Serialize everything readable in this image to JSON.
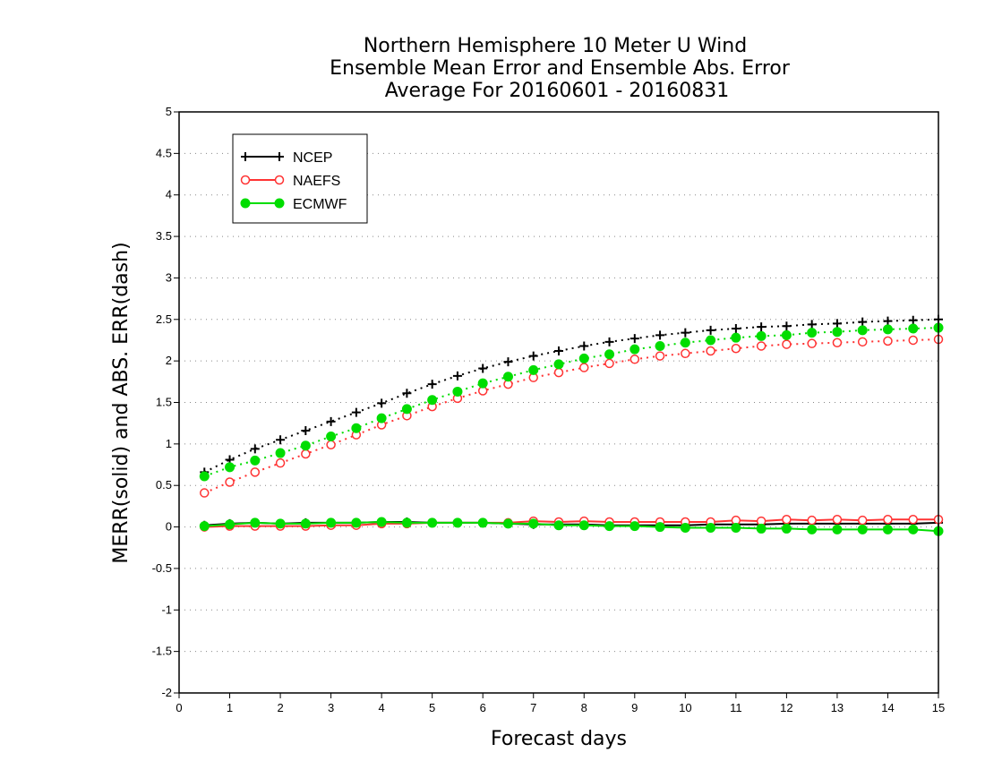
{
  "chart_data": {
    "type": "line",
    "title": [
      "Northern Hemisphere 10 Meter U Wind",
      "Ensemble Mean Error and Ensemble Abs. Error",
      "Average For 20160601 - 20160831"
    ],
    "xlabel": "Forecast days",
    "ylabel": "MERR(solid) and ABS. ERR(dash)",
    "xlim": [
      0,
      15
    ],
    "ylim": [
      -2,
      5
    ],
    "xticks": [
      "0",
      "1",
      "2",
      "3",
      "4",
      "5",
      "6",
      "7",
      "8",
      "9",
      "10",
      "11",
      "12",
      "13",
      "14",
      "15"
    ],
    "yticks": [
      "5",
      "4.5",
      "4",
      "3.5",
      "3",
      "2.5",
      "2",
      "1.5",
      "1",
      "0.5",
      "0",
      "-0.5",
      "-1",
      "-1.5",
      "-2"
    ],
    "ytick_values": [
      5,
      4.5,
      4,
      3.5,
      3,
      2.5,
      2,
      1.5,
      1,
      0.5,
      0,
      -0.5,
      -1,
      -1.5,
      -2
    ],
    "grid": "horizontal dotted",
    "legend_position": "top-left",
    "x": [
      0.5,
      1,
      1.5,
      2,
      2.5,
      3,
      3.5,
      4,
      4.5,
      5,
      5.5,
      6,
      6.5,
      7,
      7.5,
      8,
      8.5,
      9,
      9.5,
      10,
      10.5,
      11,
      11.5,
      12,
      12.5,
      13,
      13.5,
      14,
      14.5,
      15
    ],
    "series": [
      {
        "name": "NCEP",
        "color": "#000000",
        "marker": "plus",
        "abs_err": [
          0.66,
          0.81,
          0.94,
          1.05,
          1.16,
          1.27,
          1.38,
          1.49,
          1.61,
          1.72,
          1.82,
          1.91,
          1.99,
          2.06,
          2.12,
          2.18,
          2.23,
          2.27,
          2.31,
          2.34,
          2.37,
          2.39,
          2.41,
          2.42,
          2.44,
          2.45,
          2.47,
          2.48,
          2.49,
          2.5
        ],
        "mean_err": [
          0.02,
          0.04,
          0.05,
          0.04,
          0.05,
          0.05,
          0.05,
          0.06,
          0.06,
          0.05,
          0.05,
          0.05,
          0.04,
          0.03,
          0.03,
          0.03,
          0.02,
          0.02,
          0.02,
          0.02,
          0.03,
          0.03,
          0.03,
          0.04,
          0.04,
          0.04,
          0.04,
          0.04,
          0.04,
          0.05
        ]
      },
      {
        "name": "NAEFS",
        "color": "#ff3333",
        "marker": "open-circle",
        "abs_err": [
          0.41,
          0.54,
          0.66,
          0.77,
          0.88,
          0.99,
          1.11,
          1.23,
          1.34,
          1.45,
          1.55,
          1.64,
          1.72,
          1.8,
          1.86,
          1.92,
          1.97,
          2.02,
          2.06,
          2.09,
          2.12,
          2.15,
          2.18,
          2.2,
          2.21,
          2.22,
          2.23,
          2.24,
          2.25,
          2.26
        ],
        "mean_err": [
          0.0,
          0.01,
          0.01,
          0.01,
          0.01,
          0.02,
          0.02,
          0.04,
          0.04,
          0.05,
          0.05,
          0.05,
          0.05,
          0.07,
          0.06,
          0.07,
          0.06,
          0.06,
          0.06,
          0.06,
          0.06,
          0.08,
          0.07,
          0.09,
          0.08,
          0.09,
          0.08,
          0.09,
          0.09,
          0.09
        ]
      },
      {
        "name": "ECMWF",
        "color": "#00dd00",
        "marker": "filled-circle",
        "abs_err": [
          0.61,
          0.72,
          0.8,
          0.89,
          0.98,
          1.09,
          1.19,
          1.31,
          1.42,
          1.53,
          1.63,
          1.73,
          1.81,
          1.89,
          1.96,
          2.03,
          2.08,
          2.14,
          2.18,
          2.22,
          2.25,
          2.28,
          2.3,
          2.31,
          2.34,
          2.35,
          2.37,
          2.38,
          2.39,
          2.4
        ],
        "mean_err": [
          0.01,
          0.03,
          0.05,
          0.04,
          0.04,
          0.05,
          0.05,
          0.06,
          0.05,
          0.05,
          0.05,
          0.05,
          0.04,
          0.04,
          0.02,
          0.02,
          0.01,
          0.01,
          0.0,
          -0.01,
          -0.01,
          -0.01,
          -0.02,
          -0.02,
          -0.03,
          -0.03,
          -0.03,
          -0.03,
          -0.03,
          -0.05
        ]
      }
    ]
  }
}
